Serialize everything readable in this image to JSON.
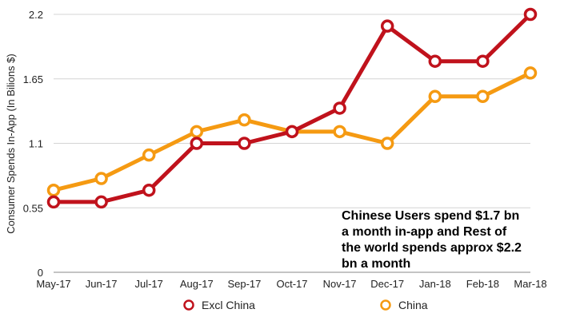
{
  "chart_data": {
    "type": "line",
    "title": "",
    "xlabel": "",
    "ylabel": "Consumer Spends In-App (In Bilions $)",
    "ylim": [
      0,
      2.2
    ],
    "yticks": [
      "0",
      "0.55",
      "1.1",
      "1.65",
      "2.2"
    ],
    "ytick_values": [
      0,
      0.55,
      1.1,
      1.65,
      2.2
    ],
    "grid": true,
    "legend_position": "bottom",
    "categories": [
      "May-17",
      "Jun-17",
      "Jul-17",
      "Aug-17",
      "Sep-17",
      "Oct-17",
      "Nov-17",
      "Dec-17",
      "Jan-18",
      "Feb-18",
      "Mar-18"
    ],
    "series": [
      {
        "name": "Excl China",
        "color": "#c0121c",
        "values": [
          0.6,
          0.6,
          0.7,
          1.1,
          1.1,
          1.2,
          1.4,
          2.1,
          1.8,
          1.8,
          2.2
        ]
      },
      {
        "name": "China",
        "color": "#f59a12",
        "values": [
          0.7,
          0.8,
          1.0,
          1.2,
          1.3,
          1.2,
          1.2,
          1.1,
          1.5,
          1.5,
          1.7
        ]
      }
    ],
    "annotation": {
      "lines": [
        "Chinese Users spend $1.7 bn",
        "a month in-app and Rest of",
        "the world spends approx $2.2",
        "bn a month"
      ]
    }
  }
}
